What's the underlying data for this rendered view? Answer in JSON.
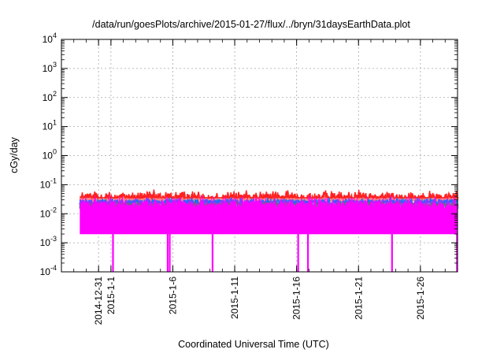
{
  "chart_data": {
    "type": "line",
    "title": "/data/run/goesPlots/archive/2015-01-27/flux/../bryn/31daysEarthData.plot",
    "xlabel": "Coordinated Universal Time (UTC)",
    "ylabel": "cGy/day",
    "yscale": "log",
    "ylim": [
      0.0001,
      10000
    ],
    "xlim": [
      "2014-12-28",
      "2015-01-29"
    ],
    "grid": true,
    "legend": "none",
    "y_ticks": [
      {
        "base": "10",
        "exp": "-4",
        "value": 0.0001
      },
      {
        "base": "10",
        "exp": "-3",
        "value": 0.001
      },
      {
        "base": "10",
        "exp": "-2",
        "value": 0.01
      },
      {
        "base": "10",
        "exp": "-1",
        "value": 0.1
      },
      {
        "base": "10",
        "exp": "0",
        "value": 1
      },
      {
        "base": "10",
        "exp": "1",
        "value": 10
      },
      {
        "base": "10",
        "exp": "2",
        "value": 100
      },
      {
        "base": "10",
        "exp": "3",
        "value": 1000
      },
      {
        "base": "10",
        "exp": "4",
        "value": 10000
      }
    ],
    "x_ticks": [
      {
        "label": "2014-12-31",
        "date": "2014-12-31"
      },
      {
        "label": "2015-1-1",
        "date": "2015-01-01"
      },
      {
        "label": "2015-1-6",
        "date": "2015-01-06"
      },
      {
        "label": "2015-1-11",
        "date": "2015-01-11"
      },
      {
        "label": "2015-1-16",
        "date": "2015-01-16"
      },
      {
        "label": "2015-1-21",
        "date": "2015-01-21"
      },
      {
        "label": "2015-1-26",
        "date": "2015-01-26"
      }
    ],
    "series": [
      {
        "color": "#ff2020",
        "typical": 0.035,
        "spread": 0.16,
        "upper_only": true
      },
      {
        "color": "#1a9b4e",
        "typical": 0.02,
        "spread": 0.12
      },
      {
        "color": "#1f6bff",
        "typical": 0.025,
        "spread": 0.18
      },
      {
        "color": "#ff00ff",
        "typical": 0.004,
        "spread": 0.3,
        "floor": 0.002,
        "top": 0.02
      }
    ],
    "dips": [
      {
        "date": "2015-01-01T04:00",
        "min": 0.0001
      },
      {
        "date": "2015-01-05T14:00",
        "min": 0.0001
      },
      {
        "date": "2015-01-05T18:00",
        "min": 0.0001
      },
      {
        "date": "2015-01-09T05:00",
        "min": 0.0001
      },
      {
        "date": "2015-01-16T03:00",
        "min": 0.0001
      },
      {
        "date": "2015-01-16T22:00",
        "min": 0.0001
      },
      {
        "date": "2015-01-23T17:00",
        "min": 0.0001
      },
      {
        "date": "2015-01-28T23:00",
        "min": 0.0001
      }
    ]
  }
}
